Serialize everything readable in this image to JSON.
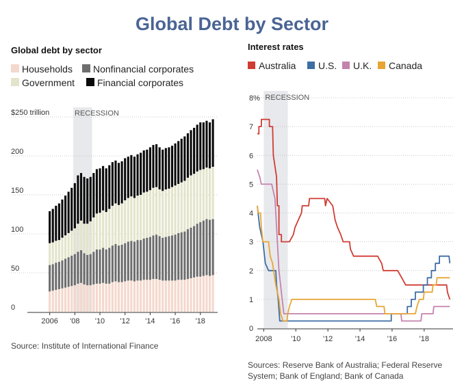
{
  "title": "Global Debt by Sector",
  "chart_data": [
    {
      "type": "bar",
      "stacked": true,
      "title": "Global debt by sector",
      "unit": "$ trillion",
      "recession_label": "RECESSION",
      "recession": [
        2008.0,
        2009.5
      ],
      "ylim": [
        0,
        250
      ],
      "yticks": [
        {
          "v": 0,
          "label": "0"
        },
        {
          "v": 50,
          "label": "50"
        },
        {
          "v": 100,
          "label": "100"
        },
        {
          "v": 150,
          "label": "150"
        },
        {
          "v": 200,
          "label": "200"
        },
        {
          "v": 250,
          "label": "$250 trillion"
        }
      ],
      "xlim": [
        2005.0,
        2019.5
      ],
      "xticks": [
        {
          "v": 2006,
          "label": "2006"
        },
        {
          "v": 2008,
          "label": "'08"
        },
        {
          "v": 2010,
          "label": "'10"
        },
        {
          "v": 2012,
          "label": "'12"
        },
        {
          "v": 2014,
          "label": "'14"
        },
        {
          "v": 2016,
          "label": "'16"
        },
        {
          "v": 2018,
          "label": "'18"
        }
      ],
      "source": "Source: Institute of International Finance",
      "quarters": [
        "2006Q1",
        "2006Q2",
        "2006Q3",
        "2006Q4",
        "2007Q1",
        "2007Q2",
        "2007Q3",
        "2007Q4",
        "2008Q1",
        "2008Q2",
        "2008Q3",
        "2008Q4",
        "2009Q1",
        "2009Q2",
        "2009Q3",
        "2009Q4",
        "2010Q1",
        "2010Q2",
        "2010Q3",
        "2010Q4",
        "2011Q1",
        "2011Q2",
        "2011Q3",
        "2011Q4",
        "2012Q1",
        "2012Q2",
        "2012Q3",
        "2012Q4",
        "2013Q1",
        "2013Q2",
        "2013Q3",
        "2013Q4",
        "2014Q1",
        "2014Q2",
        "2014Q3",
        "2014Q4",
        "2015Q1",
        "2015Q2",
        "2015Q3",
        "2015Q4",
        "2016Q1",
        "2016Q2",
        "2016Q3",
        "2016Q4",
        "2017Q1",
        "2017Q2",
        "2017Q3",
        "2017Q4",
        "2018Q1",
        "2018Q2",
        "2018Q3",
        "2018Q4",
        "2019Q1"
      ],
      "series": [
        {
          "name": "Households",
          "color": "#f4d8cc",
          "values": [
            26,
            27,
            28,
            29,
            30,
            31,
            32,
            33,
            34,
            36,
            37,
            35,
            34,
            34,
            35,
            36,
            36,
            37,
            36,
            36,
            38,
            39,
            38,
            38,
            39,
            40,
            40,
            39,
            40,
            40,
            41,
            41,
            41,
            42,
            42,
            41,
            40,
            40,
            40,
            40,
            40,
            41,
            41,
            41,
            42,
            43,
            44,
            45,
            45,
            46,
            47,
            46,
            47
          ]
        },
        {
          "name": "Nonfinancial corporates",
          "color": "#6e6e6e",
          "values": [
            34,
            34,
            35,
            35,
            36,
            37,
            38,
            39,
            40,
            41,
            42,
            40,
            39,
            40,
            42,
            44,
            44,
            45,
            44,
            46,
            47,
            48,
            47,
            48,
            49,
            50,
            51,
            51,
            52,
            52,
            53,
            54,
            55,
            56,
            57,
            56,
            55,
            56,
            57,
            58,
            59,
            60,
            61,
            62,
            64,
            65,
            66,
            68,
            70,
            71,
            72,
            72,
            72
          ]
        },
        {
          "name": "Government",
          "color": "#e4e4cc",
          "values": [
            28,
            28,
            28,
            28,
            29,
            30,
            31,
            32,
            33,
            36,
            38,
            38,
            40,
            42,
            44,
            46,
            47,
            48,
            48,
            50,
            51,
            52,
            52,
            53,
            55,
            56,
            57,
            56,
            57,
            58,
            59,
            59,
            60,
            61,
            61,
            60,
            60,
            61,
            61,
            62,
            63,
            63,
            64,
            65,
            66,
            67,
            67,
            67,
            67,
            66,
            66,
            66,
            67
          ]
        },
        {
          "name": "Financial corporates",
          "color": "#0a0a0a",
          "values": [
            41,
            43,
            45,
            47,
            49,
            51,
            53,
            55,
            58,
            62,
            61,
            60,
            58,
            57,
            57,
            57,
            57,
            57,
            56,
            56,
            56,
            55,
            54,
            54,
            54,
            53,
            53,
            53,
            53,
            54,
            54,
            54,
            55,
            55,
            55,
            54,
            53,
            53,
            53,
            53,
            54,
            55,
            56,
            57,
            57,
            58,
            59,
            60,
            61,
            60,
            60,
            59,
            61
          ]
        }
      ]
    },
    {
      "type": "line",
      "title": "Interest rates",
      "recession_label": "RECESSION",
      "recession": [
        2008.0,
        2009.5
      ],
      "ylim": [
        0,
        8
      ],
      "yticks": [
        {
          "v": 0,
          "label": "0"
        },
        {
          "v": 1,
          "label": "1"
        },
        {
          "v": 2,
          "label": "2"
        },
        {
          "v": 3,
          "label": "3"
        },
        {
          "v": 4,
          "label": "4"
        },
        {
          "v": 5,
          "label": "5"
        },
        {
          "v": 6,
          "label": "6"
        },
        {
          "v": 7,
          "label": "7"
        },
        {
          "v": 8,
          "label": "8%"
        }
      ],
      "xlim": [
        2007.6,
        2019.8
      ],
      "xticks": [
        {
          "v": 2008,
          "label": "2008"
        },
        {
          "v": 2010,
          "label": "'10"
        },
        {
          "v": 2012,
          "label": "'12"
        },
        {
          "v": 2014,
          "label": "'14"
        },
        {
          "v": 2016,
          "label": "'16"
        },
        {
          "v": 2018,
          "label": "'18"
        }
      ],
      "source_lines": [
        "Sources: Reserve Bank of Australia; Federal Reserve",
        "System; Bank of England; Bank of Canada"
      ],
      "series": [
        {
          "name": "Australia",
          "color": "#d03b32",
          "points": [
            [
              2007.6,
              6.75
            ],
            [
              2007.7,
              6.75
            ],
            [
              2007.7,
              7.0
            ],
            [
              2007.85,
              7.0
            ],
            [
              2007.85,
              7.25
            ],
            [
              2008.35,
              7.25
            ],
            [
              2008.35,
              7.0
            ],
            [
              2008.55,
              7.0
            ],
            [
              2008.6,
              6.0
            ],
            [
              2008.8,
              5.25
            ],
            [
              2008.85,
              4.25
            ],
            [
              2008.95,
              4.25
            ],
            [
              2008.95,
              3.25
            ],
            [
              2009.1,
              3.25
            ],
            [
              2009.1,
              3.0
            ],
            [
              2009.6,
              3.0
            ],
            [
              2009.85,
              3.25
            ],
            [
              2009.95,
              3.5
            ],
            [
              2010.15,
              3.75
            ],
            [
              2010.35,
              4.0
            ],
            [
              2010.4,
              4.25
            ],
            [
              2010.8,
              4.25
            ],
            [
              2010.85,
              4.5
            ],
            [
              2011.8,
              4.5
            ],
            [
              2011.85,
              4.25
            ],
            [
              2011.95,
              4.5
            ],
            [
              2012.3,
              4.25
            ],
            [
              2012.45,
              3.75
            ],
            [
              2012.6,
              3.5
            ],
            [
              2012.8,
              3.25
            ],
            [
              2012.95,
              3.0
            ],
            [
              2013.35,
              3.0
            ],
            [
              2013.4,
              2.75
            ],
            [
              2013.6,
              2.5
            ],
            [
              2015.1,
              2.5
            ],
            [
              2015.35,
              2.25
            ],
            [
              2015.45,
              2.0
            ],
            [
              2016.35,
              2.0
            ],
            [
              2016.6,
              1.75
            ],
            [
              2016.85,
              1.5
            ],
            [
              2019.4,
              1.5
            ],
            [
              2019.45,
              1.25
            ],
            [
              2019.6,
              1.0
            ]
          ]
        },
        {
          "name": "U.S.",
          "color": "#3e6da5",
          "points": [
            [
              2007.6,
              4.25
            ],
            [
              2007.75,
              3.5
            ],
            [
              2007.95,
              3.0
            ],
            [
              2008.1,
              2.25
            ],
            [
              2008.3,
              2.0
            ],
            [
              2008.75,
              2.0
            ],
            [
              2008.8,
              1.5
            ],
            [
              2008.9,
              1.0
            ],
            [
              2009.0,
              0.25
            ],
            [
              2015.95,
              0.25
            ],
            [
              2015.95,
              0.5
            ],
            [
              2016.95,
              0.5
            ],
            [
              2016.95,
              0.75
            ],
            [
              2017.2,
              0.75
            ],
            [
              2017.2,
              1.0
            ],
            [
              2017.45,
              1.0
            ],
            [
              2017.45,
              1.25
            ],
            [
              2017.95,
              1.25
            ],
            [
              2017.95,
              1.5
            ],
            [
              2018.2,
              1.5
            ],
            [
              2018.2,
              1.75
            ],
            [
              2018.45,
              1.75
            ],
            [
              2018.45,
              2.0
            ],
            [
              2018.7,
              2.0
            ],
            [
              2018.7,
              2.25
            ],
            [
              2018.95,
              2.25
            ],
            [
              2018.95,
              2.5
            ],
            [
              2019.55,
              2.5
            ],
            [
              2019.6,
              2.25
            ]
          ]
        },
        {
          "name": "U.K.",
          "color": "#c482ae",
          "points": [
            [
              2007.6,
              5.5
            ],
            [
              2007.75,
              5.25
            ],
            [
              2007.85,
              5.0
            ],
            [
              2008.5,
              5.0
            ],
            [
              2008.7,
              4.5
            ],
            [
              2008.85,
              3.0
            ],
            [
              2008.95,
              2.0
            ],
            [
              2009.05,
              1.5
            ],
            [
              2009.15,
              1.0
            ],
            [
              2009.25,
              0.5
            ],
            [
              2016.55,
              0.5
            ],
            [
              2016.6,
              0.25
            ],
            [
              2017.8,
              0.25
            ],
            [
              2017.85,
              0.5
            ],
            [
              2018.55,
              0.5
            ],
            [
              2018.6,
              0.75
            ],
            [
              2019.6,
              0.75
            ]
          ]
        },
        {
          "name": "Canada",
          "color": "#e8a534",
          "points": [
            [
              2007.6,
              4.25
            ],
            [
              2007.65,
              4.0
            ],
            [
              2007.8,
              4.0
            ],
            [
              2007.85,
              3.5
            ],
            [
              2007.95,
              3.0
            ],
            [
              2008.3,
              3.0
            ],
            [
              2008.4,
              2.5
            ],
            [
              2008.55,
              2.25
            ],
            [
              2008.75,
              1.5
            ],
            [
              2008.95,
              1.0
            ],
            [
              2009.05,
              0.5
            ],
            [
              2009.2,
              0.25
            ],
            [
              2009.45,
              0.25
            ],
            [
              2009.5,
              0.5
            ],
            [
              2009.6,
              0.75
            ],
            [
              2009.75,
              1.0
            ],
            [
              2014.95,
              1.0
            ],
            [
              2015.05,
              0.75
            ],
            [
              2015.5,
              0.75
            ],
            [
              2015.55,
              0.5
            ],
            [
              2017.45,
              0.5
            ],
            [
              2017.55,
              0.75
            ],
            [
              2017.7,
              1.0
            ],
            [
              2017.95,
              1.0
            ],
            [
              2018.0,
              1.25
            ],
            [
              2018.5,
              1.25
            ],
            [
              2018.55,
              1.5
            ],
            [
              2018.75,
              1.5
            ],
            [
              2018.8,
              1.75
            ],
            [
              2019.6,
              1.75
            ]
          ]
        }
      ]
    }
  ]
}
